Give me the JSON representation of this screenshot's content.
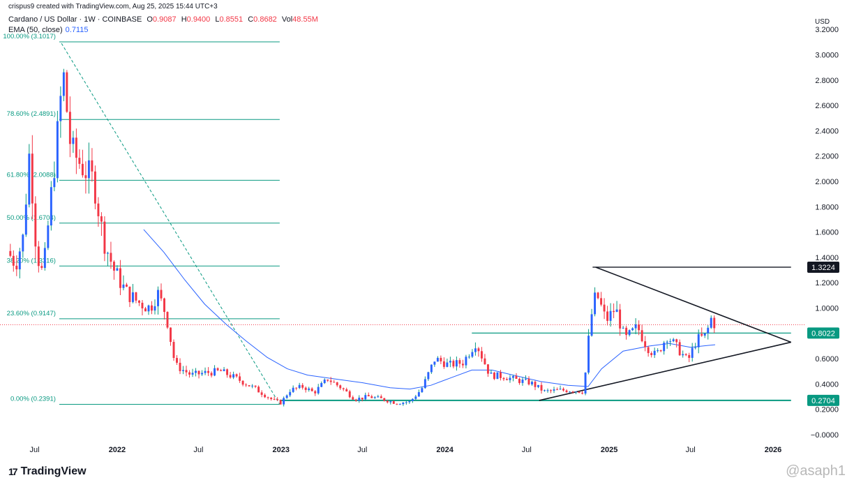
{
  "header": {
    "credit": "crispus9 created with TradingView.com, Aug 25, 2025 15:44 UTC+3",
    "symbol": "Cardano / US Dollar · 1W · COINBASE",
    "o_label": "O",
    "o": "0.9087",
    "h_label": "H",
    "h": "0.9400",
    "l_label": "L",
    "l": "0.8551",
    "c_label": "C",
    "c": "0.8682",
    "vol_label": "Vol",
    "vol": "48.55M",
    "ema_label": "EMA (50, close)",
    "ema": "0.7115"
  },
  "brand": {
    "logo_text": "TradingView",
    "watermark": "@asaph1"
  },
  "chart_data": {
    "type": "candlestick",
    "currency": "USD",
    "y_axis": {
      "ylim": [
        -0.05,
        3.35
      ],
      "ticks": [
        -0.0,
        0.2,
        0.4,
        0.6,
        0.8,
        1.0,
        1.2,
        1.4,
        1.6,
        1.8,
        2.0,
        2.2,
        2.4,
        2.6,
        2.8,
        3.0,
        3.2
      ],
      "tick_labels": [
        "−0.0000",
        "0.2000",
        "0.4000",
        "0.6000",
        "0.8000",
        "1.0000",
        "1.2000",
        "1.4000",
        "1.6000",
        "1.8000",
        "2.0000",
        "2.2000",
        "2.4000",
        "2.6000",
        "2.8000",
        "3.0000",
        "3.2000"
      ]
    },
    "x_axis": {
      "xlim": [
        "2021-04-15",
        "2026-03-15"
      ],
      "ticks": [
        {
          "date": "2021-07-01",
          "label": "Jul",
          "bold": false
        },
        {
          "date": "2022-01-01",
          "label": "2022",
          "bold": true
        },
        {
          "date": "2022-07-01",
          "label": "Jul",
          "bold": false
        },
        {
          "date": "2023-01-01",
          "label": "2023",
          "bold": true
        },
        {
          "date": "2023-07-01",
          "label": "Jul",
          "bold": false
        },
        {
          "date": "2024-01-01",
          "label": "2024",
          "bold": true
        },
        {
          "date": "2024-07-01",
          "label": "Jul",
          "bold": false
        },
        {
          "date": "2025-01-01",
          "label": "2025",
          "bold": true
        },
        {
          "date": "2025-07-01",
          "label": "Jul",
          "bold": false
        },
        {
          "date": "2026-01-01",
          "label": "2026",
          "bold": true
        }
      ]
    },
    "price_labels": [
      {
        "value": 1.3224,
        "text": "1.3224",
        "bg": "#131722"
      },
      {
        "value": 0.8022,
        "text": "0.8022",
        "bg": "#089981"
      },
      {
        "value": 0.2704,
        "text": "0.2704",
        "bg": "#089981"
      }
    ],
    "current_price": 0.8682,
    "fibonacci": {
      "x_start": "2021-08-25",
      "x_end": "2022-12-29",
      "levels": [
        {
          "value": 3.1017,
          "label": "100.00% (3.1017)"
        },
        {
          "value": 2.4891,
          "label": "78.60% (2.4891)"
        },
        {
          "value": 2.0088,
          "label": "61.80% (2.0088)"
        },
        {
          "value": 1.6704,
          "label": "50.00% (1.6704)"
        },
        {
          "value": 1.3316,
          "label": "38.20% (1.3316)"
        },
        {
          "value": 0.9147,
          "label": "23.60% (0.9147)"
        },
        {
          "value": 0.2391,
          "label": "0.00% (0.2391)"
        }
      ]
    },
    "fib_diagonal": [
      [
        "2021-08-30",
        3.09
      ],
      [
        "2022-12-29",
        0.24
      ]
    ],
    "horizontal_lines": [
      {
        "from": "2024-11-25",
        "to": "2026-02-10",
        "value": 1.3224,
        "color": "#131722"
      },
      {
        "from": "2024-03-01",
        "to": "2026-02-10",
        "value": 0.8022,
        "color": "#089981"
      },
      {
        "from": "2022-12-29",
        "to": "2026-02-10",
        "value": 0.2704,
        "color": "#089981"
      }
    ],
    "triangle": [
      [
        [
          "2024-12-02",
          1.3224
        ],
        [
          "2026-02-10",
          0.73
        ]
      ],
      [
        [
          "2024-07-29",
          0.27
        ],
        [
          "2026-02-10",
          0.73
        ]
      ]
    ],
    "ema50": [
      [
        "2022-03-01",
        1.62
      ],
      [
        "2022-04-15",
        1.44
      ],
      [
        "2022-06-01",
        1.22
      ],
      [
        "2022-07-15",
        1.03
      ],
      [
        "2022-09-01",
        0.87
      ],
      [
        "2022-10-15",
        0.74
      ],
      [
        "2022-12-01",
        0.61
      ],
      [
        "2023-01-15",
        0.52
      ],
      [
        "2023-03-01",
        0.47
      ],
      [
        "2023-05-01",
        0.44
      ],
      [
        "2023-07-01",
        0.41
      ],
      [
        "2023-09-01",
        0.37
      ],
      [
        "2023-10-15",
        0.36
      ],
      [
        "2023-12-01",
        0.39
      ],
      [
        "2024-01-15",
        0.45
      ],
      [
        "2024-03-01",
        0.51
      ],
      [
        "2024-04-15",
        0.51
      ],
      [
        "2024-06-01",
        0.47
      ],
      [
        "2024-08-01",
        0.42
      ],
      [
        "2024-10-01",
        0.39
      ],
      [
        "2024-11-15",
        0.38
      ],
      [
        "2024-12-15",
        0.52
      ],
      [
        "2025-02-01",
        0.66
      ],
      [
        "2025-04-01",
        0.7
      ],
      [
        "2025-05-15",
        0.72
      ],
      [
        "2025-07-01",
        0.69
      ],
      [
        "2025-08-25",
        0.71
      ]
    ],
    "anchors": [
      [
        "2021-05-01",
        1.45
      ],
      [
        "2021-05-20",
        1.35
      ],
      [
        "2021-06-05",
        1.55
      ],
      [
        "2021-06-20",
        2.25
      ],
      [
        "2021-07-05",
        1.45
      ],
      [
        "2021-07-20",
        1.25
      ],
      [
        "2021-08-10",
        2.0
      ],
      [
        "2021-08-25",
        2.5
      ],
      [
        "2021-09-02",
        2.88
      ],
      [
        "2021-09-20",
        2.25
      ],
      [
        "2021-10-15",
        2.12
      ],
      [
        "2021-11-10",
        2.0
      ],
      [
        "2021-12-01",
        1.55
      ],
      [
        "2021-12-25",
        1.3
      ],
      [
        "2022-01-20",
        1.13
      ],
      [
        "2022-02-15",
        1.05
      ],
      [
        "2022-03-15",
        1.0
      ],
      [
        "2022-04-01",
        1.12
      ],
      [
        "2022-04-20",
        0.95
      ],
      [
        "2022-05-10",
        0.55
      ],
      [
        "2022-06-15",
        0.47
      ],
      [
        "2022-07-20",
        0.49
      ],
      [
        "2022-08-20",
        0.5
      ],
      [
        "2022-09-20",
        0.45
      ],
      [
        "2022-11-01",
        0.37
      ],
      [
        "2022-12-15",
        0.27
      ],
      [
        "2023-01-01",
        0.25
      ],
      [
        "2023-01-20",
        0.35
      ],
      [
        "2023-02-20",
        0.38
      ],
      [
        "2023-03-15",
        0.33
      ],
      [
        "2023-04-15",
        0.44
      ],
      [
        "2023-05-15",
        0.37
      ],
      [
        "2023-06-15",
        0.28
      ],
      [
        "2023-07-15",
        0.3
      ],
      [
        "2023-08-15",
        0.28
      ],
      [
        "2023-09-15",
        0.25
      ],
      [
        "2023-10-15",
        0.26
      ],
      [
        "2023-11-10",
        0.36
      ],
      [
        "2023-12-10",
        0.6
      ],
      [
        "2024-01-10",
        0.55
      ],
      [
        "2024-02-10",
        0.57
      ],
      [
        "2024-03-10",
        0.73
      ],
      [
        "2024-04-10",
        0.47
      ],
      [
        "2024-05-10",
        0.46
      ],
      [
        "2024-06-10",
        0.43
      ],
      [
        "2024-07-10",
        0.41
      ],
      [
        "2024-08-10",
        0.34
      ],
      [
        "2024-09-10",
        0.35
      ],
      [
        "2024-10-10",
        0.35
      ],
      [
        "2024-11-05",
        0.34
      ],
      [
        "2024-11-20",
        0.9
      ],
      [
        "2024-12-03",
        1.12
      ],
      [
        "2024-12-25",
        0.9
      ],
      [
        "2025-01-15",
        1.0
      ],
      [
        "2025-02-05",
        0.75
      ],
      [
        "2025-03-05",
        0.85
      ],
      [
        "2025-03-25",
        0.7
      ],
      [
        "2025-04-15",
        0.62
      ],
      [
        "2025-05-10",
        0.78
      ],
      [
        "2025-06-05",
        0.67
      ],
      [
        "2025-06-25",
        0.58
      ],
      [
        "2025-07-15",
        0.75
      ],
      [
        "2025-08-05",
        0.78
      ],
      [
        "2025-08-15",
        0.92
      ],
      [
        "2025-08-25",
        0.8682
      ]
    ]
  }
}
